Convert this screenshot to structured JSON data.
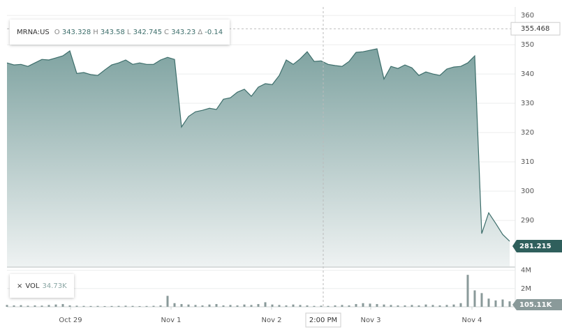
{
  "chart_data": [
    {
      "type": "area",
      "ticker": "MRNA:US",
      "ohlc": [
        {
          "label": "O",
          "value": 343.328
        },
        {
          "label": "H",
          "value": 343.58
        },
        {
          "label": "L",
          "value": 342.745
        },
        {
          "label": "C",
          "value": 343.23
        },
        {
          "label": "Δ",
          "value": -0.14
        }
      ],
      "color": "#3d6e6b",
      "values": [
        343.8,
        343.1,
        343.3,
        342.6,
        343.8,
        345.0,
        344.8,
        345.5,
        346.2,
        347.9,
        340.2,
        340.5,
        339.8,
        339.5,
        341.4,
        343.1,
        343.8,
        344.8,
        343.3,
        343.8,
        343.3,
        343.3,
        344.8,
        345.7,
        345.0,
        321.9,
        325.5,
        327.1,
        327.6,
        328.3,
        327.9,
        331.4,
        331.9,
        333.8,
        334.8,
        332.4,
        335.5,
        336.7,
        336.4,
        339.5,
        344.8,
        343.3,
        345.2,
        347.6,
        344.3,
        344.5,
        343.3,
        342.9,
        342.6,
        344.3,
        347.4,
        347.6,
        348.1,
        348.6,
        338.3,
        342.6,
        341.9,
        343.1,
        342.1,
        339.5,
        340.7,
        340.0,
        339.5,
        341.7,
        342.4,
        342.6,
        343.8,
        346.2,
        285.5,
        292.6,
        289.0,
        285.2,
        282.9
      ],
      "xlim": [
        0,
        72
      ],
      "xticks": [
        {
          "value": 9.1,
          "label": "Oct 29"
        },
        {
          "value": 23.5,
          "label": "Nov 1"
        },
        {
          "value": 37.9,
          "label": "Nov 2"
        },
        {
          "value": 52.1,
          "label": "Nov 3"
        },
        {
          "value": 66.6,
          "label": "Nov 4"
        }
      ],
      "ylim": [
        274.3,
        362.9
      ],
      "yticks": [
        290,
        300,
        310,
        320,
        330,
        340,
        350,
        360
      ],
      "grid": true,
      "crosshair": {
        "x": {
          "value": 45.3,
          "label": "2:00 PM"
        },
        "y": 355.468
      },
      "last_price": 281.215
    },
    {
      "type": "bar",
      "name": "VOL",
      "legend_value": "34.73K",
      "color": "#8a9a9a",
      "values": [
        200000,
        150000,
        180000,
        120000,
        150000,
        130000,
        200000,
        250000,
        300000,
        150000,
        120000,
        100000,
        90000,
        100000,
        80000,
        90000,
        100000,
        120000,
        100000,
        80000,
        90000,
        110000,
        150000,
        1200000,
        400000,
        300000,
        250000,
        200000,
        150000,
        250000,
        300000,
        150000,
        200000,
        150000,
        250000,
        200000,
        300000,
        500000,
        250000,
        200000,
        150000,
        250000,
        200000,
        150000,
        100000,
        120000,
        100000,
        150000,
        200000,
        150000,
        300000,
        400000,
        350000,
        300000,
        250000,
        200000,
        150000,
        150000,
        200000,
        150000,
        250000,
        200000,
        150000,
        200000,
        250000,
        400000,
        3500000,
        1800000,
        1500000,
        900000,
        700000,
        800000,
        600000
      ],
      "ylim": [
        0,
        4200000
      ],
      "yticks": [
        {
          "value": 2000000,
          "label": "2M"
        },
        {
          "value": 4000000,
          "label": "4M"
        }
      ],
      "last_label": "105.11K"
    }
  ]
}
